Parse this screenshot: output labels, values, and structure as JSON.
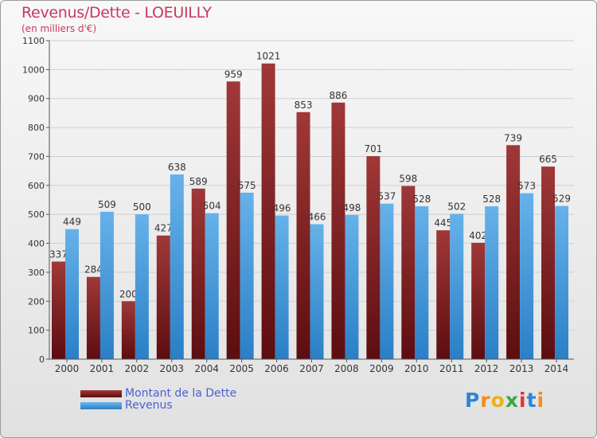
{
  "header": {
    "title": "Revenus/Dette - LOEUILLY",
    "subtitle": "(en milliers d'€)"
  },
  "legend": {
    "debt_label": "Montant de la Dette",
    "revenue_label": "Revenus"
  },
  "logo": {
    "text": "Proxiti",
    "letters": [
      "P",
      "r",
      "o",
      "x",
      "i",
      "t",
      "i"
    ],
    "letter_colors": [
      "#2e86d6",
      "#f28c1e",
      "#e8b21a",
      "#3aa845",
      "#d63a3a",
      "#2e86d6",
      "#f28c1e"
    ]
  },
  "colors": {
    "debt": "#6e1a1d",
    "debt_light": "#a23a3a",
    "revenue": "#3d8fd4",
    "revenue_light": "#6fb6ea",
    "title": "#c8385e",
    "legend_text": "#4c5fd4"
  },
  "chart_data": {
    "type": "bar",
    "title": "Revenus/Dette - LOEUILLY",
    "subtitle": "(en milliers d'€)",
    "categories": [
      "2000",
      "2001",
      "2002",
      "2003",
      "2004",
      "2005",
      "2006",
      "2007",
      "2008",
      "2009",
      "2010",
      "2011",
      "2012",
      "2013",
      "2014"
    ],
    "series": [
      {
        "name": "Montant de la Dette",
        "values": [
          337,
          284,
          200,
          427,
          589,
          959,
          1021,
          853,
          886,
          701,
          598,
          445,
          402,
          739,
          665
        ]
      },
      {
        "name": "Revenus",
        "values": [
          449,
          509,
          500,
          638,
          504,
          575,
          496,
          466,
          498,
          537,
          528,
          502,
          528,
          573,
          529
        ]
      }
    ],
    "ylim": [
      0,
      1100
    ],
    "yticks": [
      0,
      100,
      200,
      300,
      400,
      500,
      600,
      700,
      800,
      900,
      1000,
      1100
    ],
    "grid": true,
    "legend_position": "bottom-left"
  }
}
